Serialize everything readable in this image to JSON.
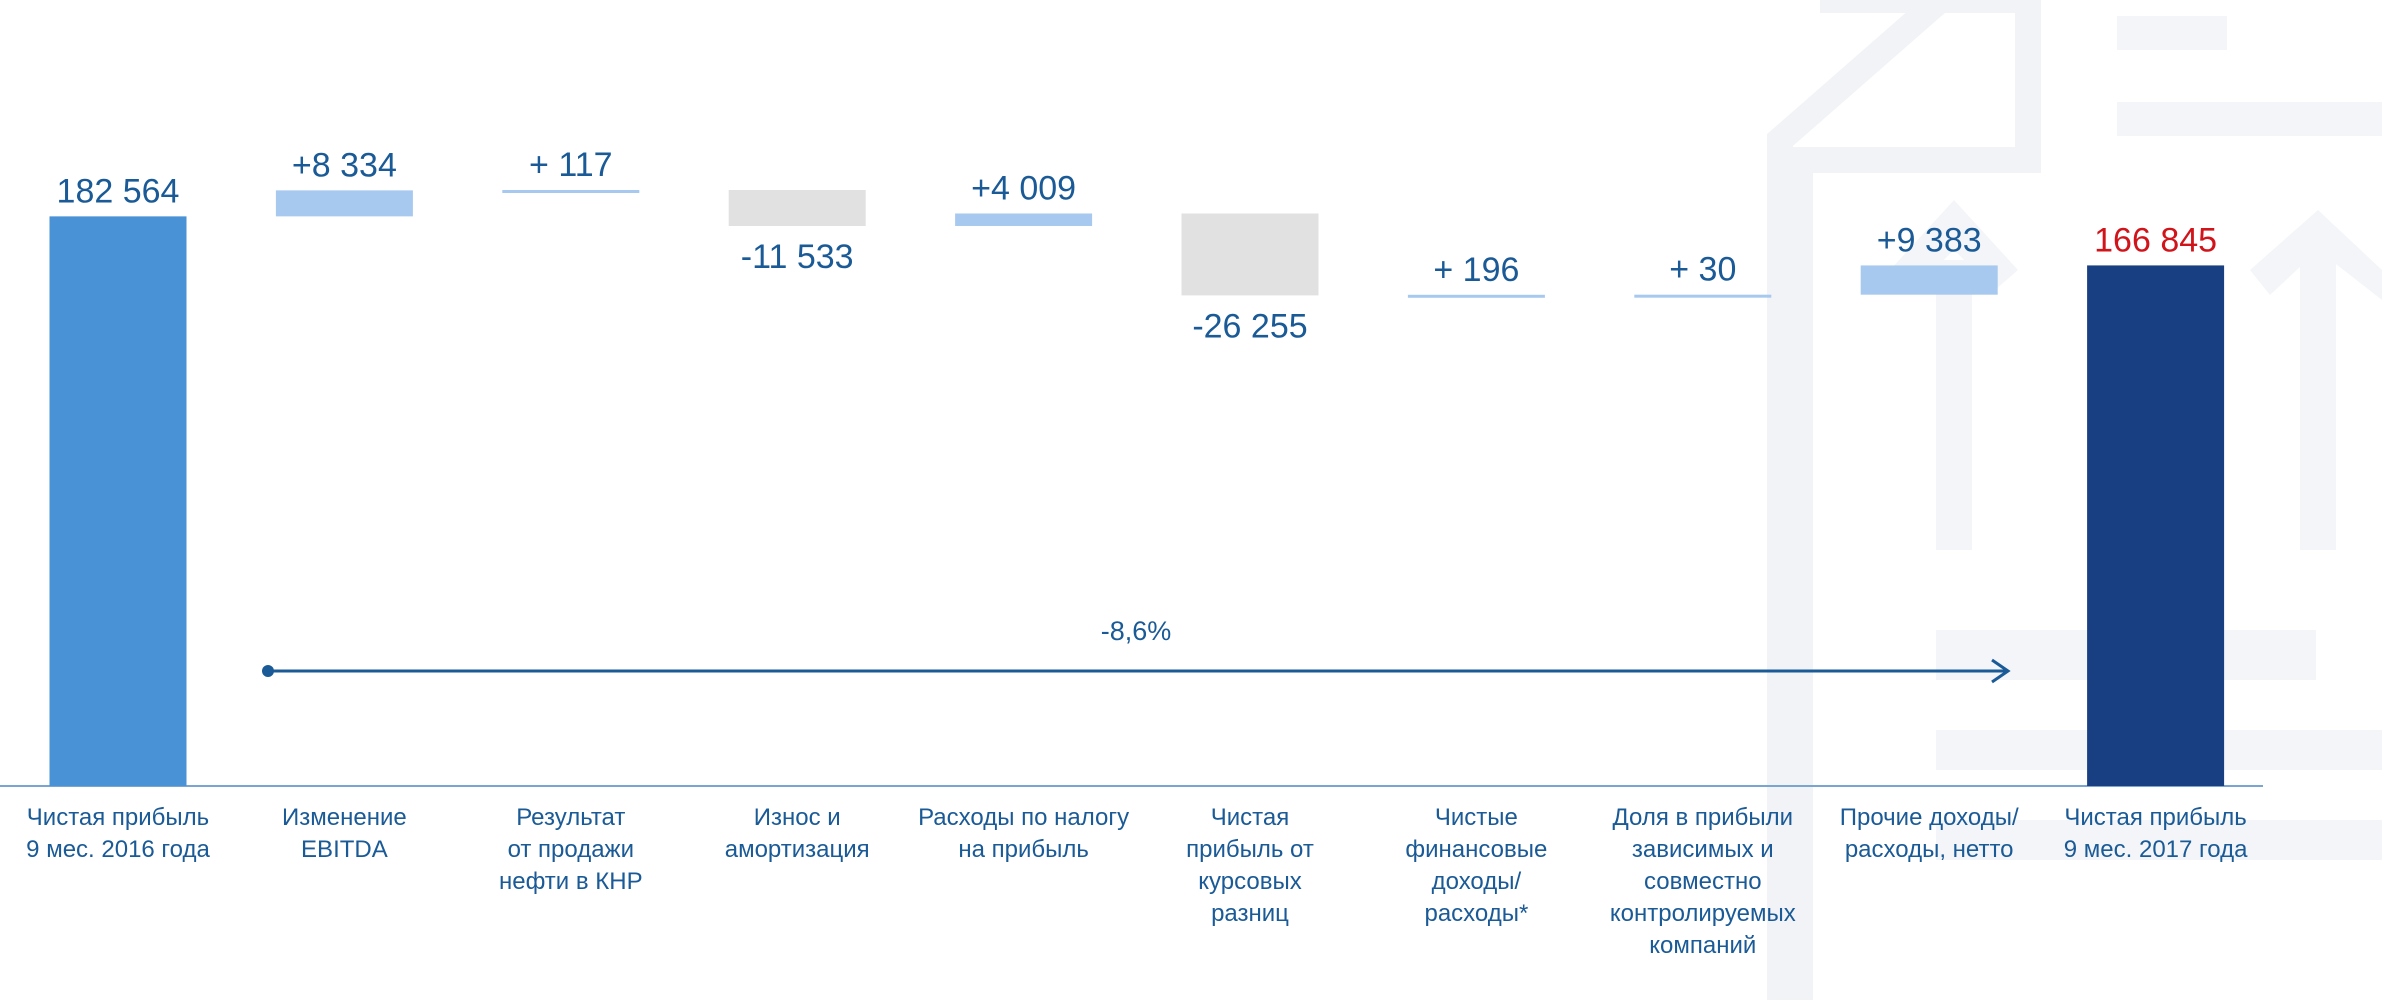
{
  "chart_data": {
    "type": "waterfall",
    "categories": [
      "Чистая прибыль\n9 мес. 2016 года",
      "Изменение\nEBITDA",
      "Результат\nот продажи\nнефти в КНР",
      "Износ и\nамортизация",
      "Расходы по налогу\nна прибыль",
      "Чистая\nприбыль от\nкурсовых\nразниц",
      "Чистые\nфинансовые\nдоходы/\nрасходы*",
      "Доля в прибыли\nзависимых и\nсовместно\nконтролируемых\nкомпаний",
      "Прочие доходы/\nрасходы, нетто",
      "Чистая прибыль\n9 мес. 2017 года"
    ],
    "measures": [
      "absolute",
      "relative",
      "relative",
      "relative",
      "relative",
      "relative",
      "relative",
      "relative",
      "relative",
      "total"
    ],
    "values": [
      182564,
      8334,
      117,
      -11533,
      4009,
      -26255,
      196,
      30,
      9383,
      166845
    ],
    "value_labels": [
      "182 564",
      "+8 334",
      "+ 117",
      "-11 533",
      "+4 009",
      "-26 255",
      "+ 196",
      "+ 30",
      "+9 383",
      "166 845"
    ],
    "colors": [
      "#4a92d6",
      "#a8c9ef",
      "#a8c9ef",
      "#e1e1e1",
      "#a8c9ef",
      "#e1e1e1",
      "#a8c9ef",
      "#a8c9ef",
      "#a8c9ef",
      "#173f82"
    ],
    "label_colors": [
      "#1a5a96",
      "#1a5a96",
      "#1a5a96",
      "#1a5a96",
      "#1a5a96",
      "#1a5a96",
      "#1a5a96",
      "#1a5a96",
      "#1a5a96",
      "#d0141a"
    ],
    "annotation": "-8,6%"
  }
}
